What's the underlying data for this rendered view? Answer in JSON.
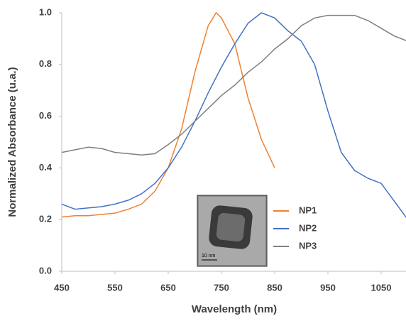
{
  "chart_data": {
    "type": "line",
    "x_label": "Wavelength (nm)",
    "y_label": "Normalized Absorbance (u.a.)",
    "x": [
      450,
      475,
      500,
      525,
      550,
      575,
      600,
      625,
      650,
      675,
      700,
      725,
      740,
      750,
      775,
      800,
      825,
      850,
      875,
      900,
      925,
      950,
      975,
      1000,
      1025,
      1050,
      1075,
      1100
    ],
    "series": [
      {
        "name": "NP1",
        "color": "#f08030",
        "values": [
          0.21,
          0.215,
          0.215,
          0.22,
          0.225,
          0.24,
          0.26,
          0.31,
          0.4,
          0.55,
          0.77,
          0.95,
          1.0,
          0.98,
          0.88,
          0.67,
          0.51,
          0.4,
          null,
          null,
          null,
          null,
          null,
          null,
          null,
          null,
          null,
          null
        ]
      },
      {
        "name": "NP2",
        "color": "#4472c4",
        "values": [
          0.26,
          0.24,
          0.245,
          0.25,
          0.26,
          0.275,
          0.3,
          0.34,
          0.4,
          0.48,
          0.58,
          0.69,
          0.75,
          0.79,
          0.88,
          0.96,
          1.0,
          0.98,
          0.93,
          0.89,
          0.8,
          0.62,
          0.46,
          0.39,
          0.36,
          0.34,
          0.27,
          0.2
        ]
      },
      {
        "name": "NP3",
        "color": "#7f7f7f",
        "values": [
          0.46,
          0.47,
          0.48,
          0.475,
          0.46,
          0.455,
          0.45,
          0.455,
          0.49,
          0.53,
          0.58,
          0.63,
          0.66,
          0.68,
          0.72,
          0.77,
          0.81,
          0.86,
          0.9,
          0.95,
          0.98,
          0.99,
          0.99,
          0.99,
          0.97,
          0.94,
          0.91,
          0.89
        ]
      }
    ],
    "xlim": [
      450,
      1100
    ],
    "xticks": [
      450,
      550,
      650,
      750,
      850,
      950,
      1050
    ],
    "ylim": [
      0,
      1.0
    ],
    "yticks": [
      {
        "value": 0,
        "label": "0.0"
      },
      0.2,
      0.4,
      0.6,
      0.8,
      {
        "value": 1.0,
        "label": "1.0"
      }
    ],
    "grid": false,
    "legend": "lower right",
    "inset": {
      "scale_label": "10 nm"
    }
  }
}
